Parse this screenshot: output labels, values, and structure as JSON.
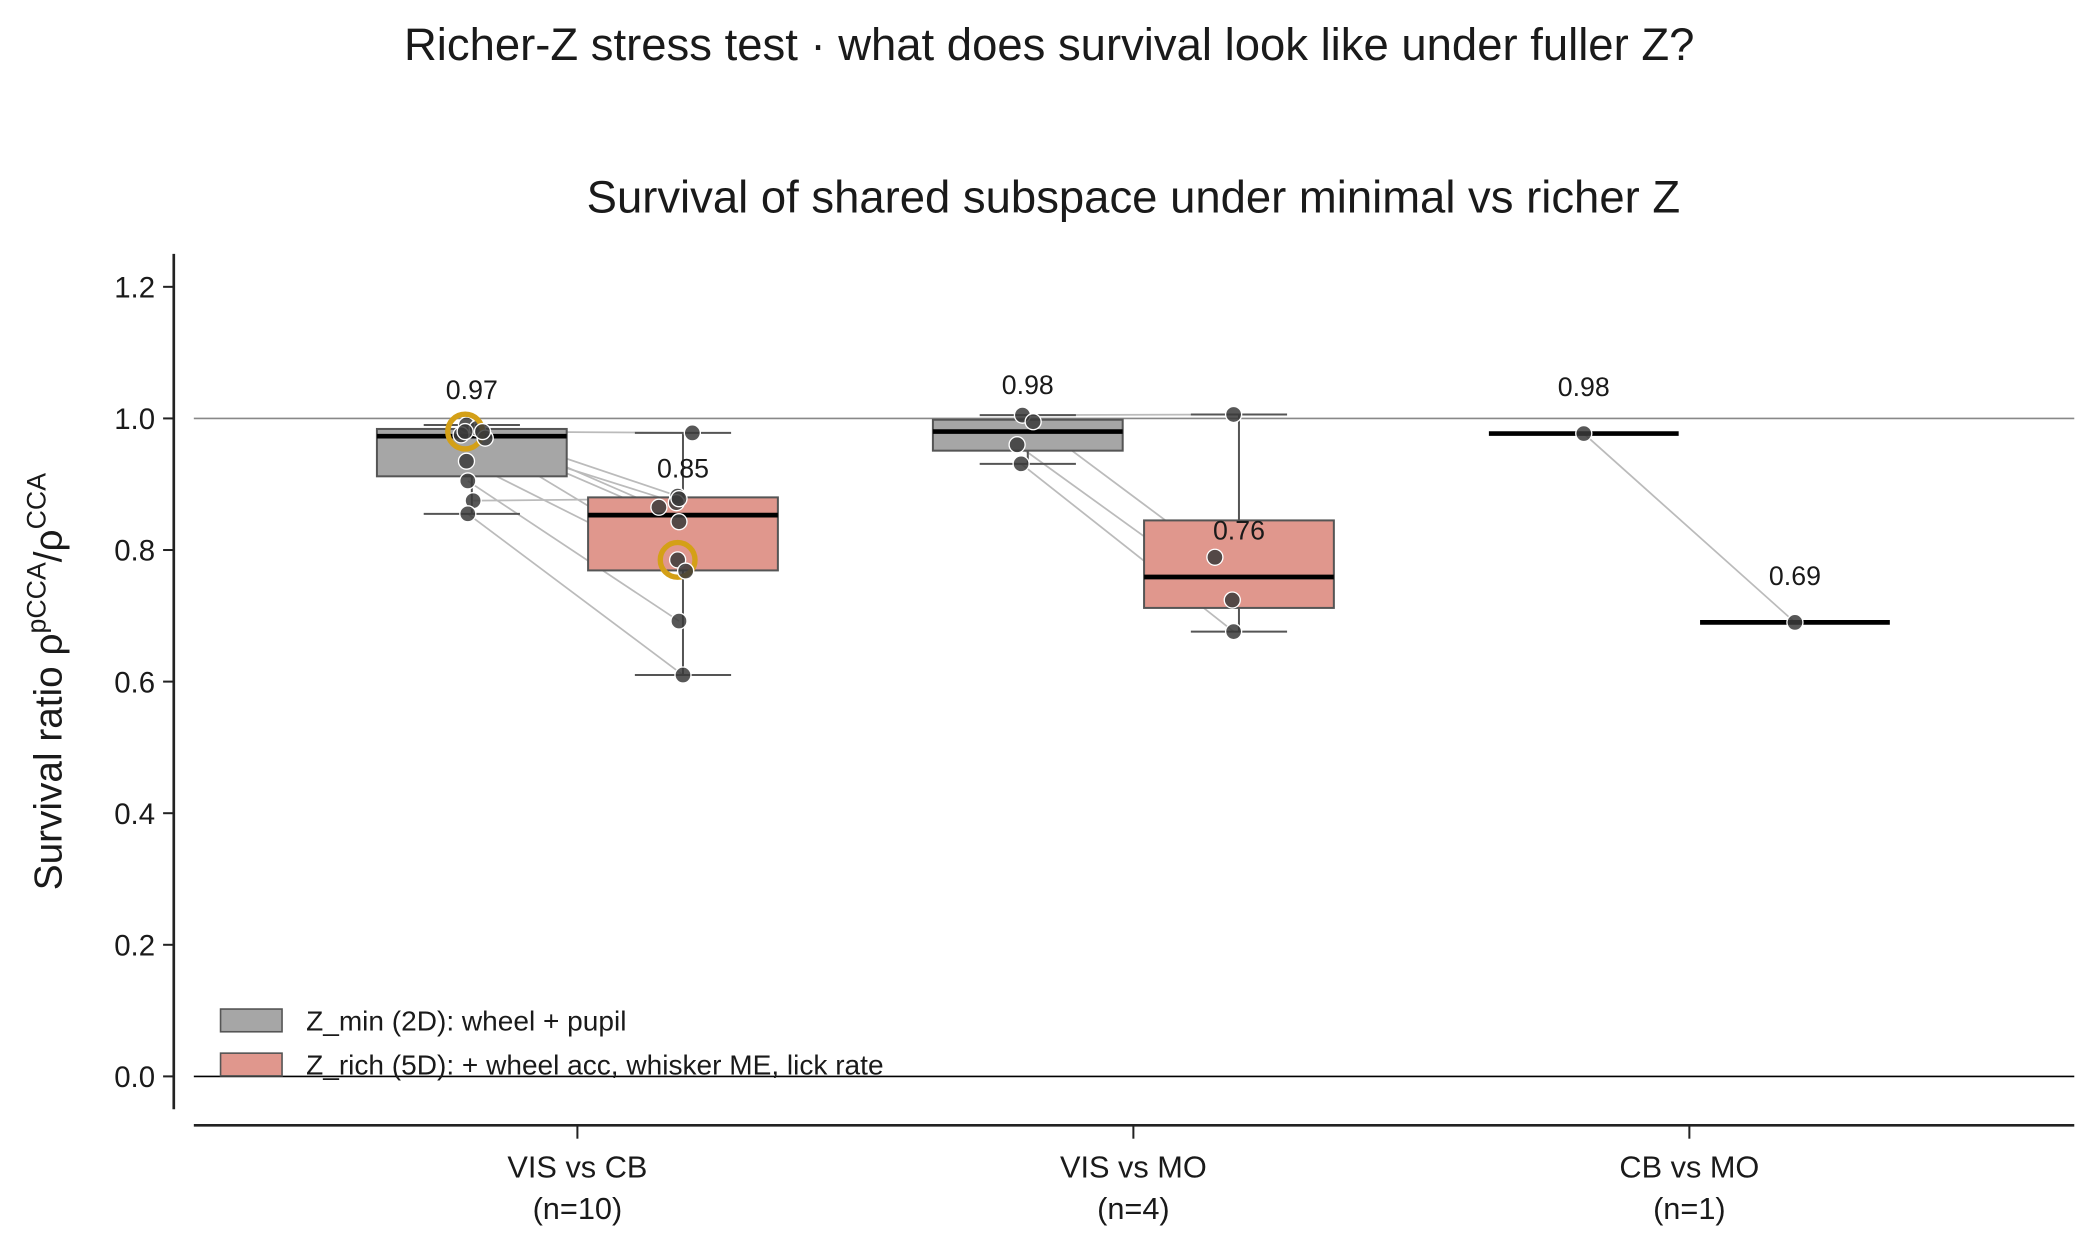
{
  "chart_data": {
    "type": "box",
    "suptitle": "Richer-Z stress test  ·  what does survival look like under fuller Z?",
    "title": "Survival of shared subspace under minimal vs richer Z",
    "ylabel": [
      "Survival ratio  ρ",
      "pCCA",
      "/ρ",
      "CCA"
    ],
    "categories": [
      "VIS vs CB",
      "VIS vs MO",
      "CB vs MO"
    ],
    "category_counts": [
      "(n=10)",
      "(n=4)",
      "(n=1)"
    ],
    "ylim": [
      -0.05,
      1.25
    ],
    "yticks": [
      {
        "value": 0,
        "label": "0.0"
      },
      {
        "value": 0.2,
        "label": "0.2"
      },
      {
        "value": 0.4,
        "label": "0.4"
      },
      {
        "value": 0.6,
        "label": "0.6"
      },
      {
        "value": 0.8,
        "label": "0.8"
      },
      {
        "value": 1,
        "label": "1.0"
      },
      {
        "value": 1.2,
        "label": "1.2"
      }
    ],
    "hlines": [
      {
        "value": 1,
        "color": "#888888"
      },
      {
        "value": 0,
        "color": "#000000"
      }
    ],
    "legend": "lower left",
    "highlight": {
      "category": 0,
      "index": 3,
      "color": "#d4a017"
    },
    "series": [
      {
        "name": "Z_min (2D): wheel + pupil",
        "color": "#a6a6a6",
        "q1": [
          0.912,
          0.951,
          0.977
        ],
        "median": [
          0.973,
          0.98,
          0.977
        ],
        "q3": [
          0.984,
          0.998,
          0.977
        ],
        "whislo": [
          0.855,
          0.931,
          0.977
        ],
        "whishi": [
          0.99,
          1.005,
          0.977
        ],
        "median_labels": [
          "0.97",
          "0.98",
          "0.98"
        ],
        "points": [
          [
            0.99,
            0.985,
            0.975,
            0.98,
            0.97,
            0.98,
            0.935,
            0.905,
            0.875,
            0.855
          ],
          [
            1.005,
            0.995,
            0.96,
            0.931
          ],
          [
            0.977
          ]
        ]
      },
      {
        "name": "Z_rich (5D): + wheel acc, whisker ME, lick rate",
        "color": "#e0978d",
        "q1": [
          0.769,
          0.712,
          0.69
        ],
        "median": [
          0.853,
          0.759,
          0.69
        ],
        "q3": [
          0.88,
          0.845,
          0.69
        ],
        "whislo": [
          0.61,
          0.676,
          0.69
        ],
        "whishi": [
          0.978,
          1.006,
          0.69
        ],
        "median_labels": [
          "0.85",
          "0.76",
          "0.69"
        ],
        "points": [
          [
            0.882,
            0.865,
            0.872,
            0.785,
            0.843,
            0.978,
            0.768,
            0.692,
            0.878,
            0.61
          ],
          [
            1.006,
            0.789,
            0.724,
            0.676
          ],
          [
            0.69
          ]
        ]
      }
    ]
  }
}
